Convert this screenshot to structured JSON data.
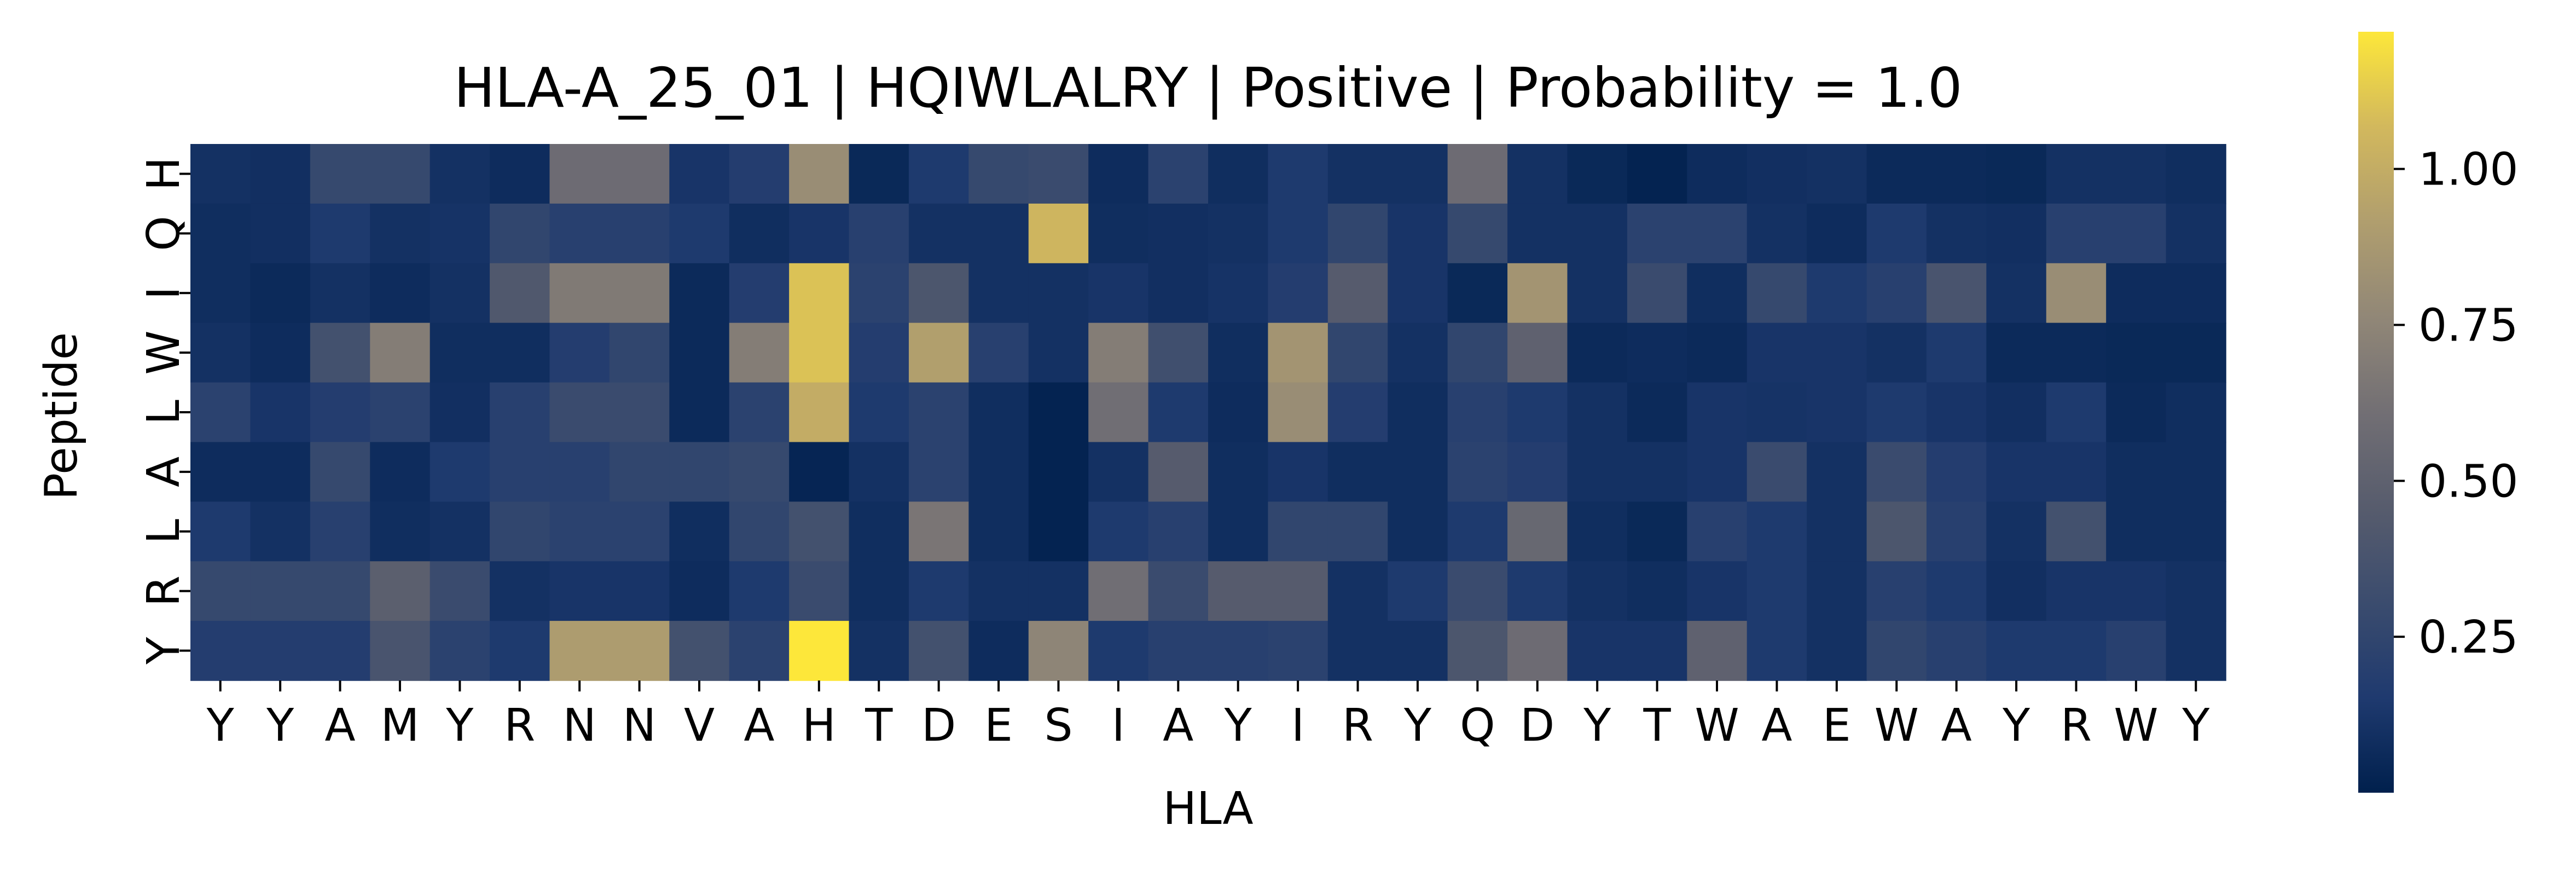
{
  "chart_data": {
    "type": "heatmap",
    "title": "HLA-A_25_01 | HQIWLALRY | Positive | Probability = 1.0",
    "xlabel": "HLA",
    "ylabel": "Peptide",
    "x_categories": [
      "Y",
      "Y",
      "A",
      "M",
      "Y",
      "R",
      "N",
      "N",
      "V",
      "A",
      "H",
      "T",
      "D",
      "E",
      "S",
      "I",
      "A",
      "Y",
      "I",
      "R",
      "Y",
      "Q",
      "D",
      "Y",
      "T",
      "W",
      "A",
      "E",
      "W",
      "A",
      "Y",
      "R",
      "W",
      "Y"
    ],
    "y_categories": [
      "H",
      "Q",
      "I",
      "W",
      "L",
      "A",
      "L",
      "R",
      "Y"
    ],
    "colormap": "cividis",
    "vmin": 0.0,
    "vmax": 1.22,
    "colorbar_ticks": [
      {
        "value": 0.25,
        "label": "0.25"
      },
      {
        "value": 0.5,
        "label": "0.50"
      },
      {
        "value": 0.75,
        "label": "0.75"
      },
      {
        "value": 1.0,
        "label": "1.00"
      }
    ],
    "grid": false,
    "values": [
      [
        0.1,
        0.09,
        0.28,
        0.28,
        0.1,
        0.07,
        0.58,
        0.58,
        0.12,
        0.18,
        0.8,
        0.05,
        0.15,
        0.28,
        0.3,
        0.07,
        0.22,
        0.08,
        0.15,
        0.1,
        0.1,
        0.58,
        0.1,
        0.05,
        0.02,
        0.07,
        0.09,
        0.1,
        0.06,
        0.06,
        0.05,
        0.1,
        0.1,
        0.08
      ],
      [
        0.08,
        0.09,
        0.15,
        0.1,
        0.11,
        0.25,
        0.2,
        0.2,
        0.15,
        0.08,
        0.12,
        0.2,
        0.1,
        0.1,
        1.05,
        0.08,
        0.09,
        0.1,
        0.15,
        0.25,
        0.12,
        0.28,
        0.1,
        0.1,
        0.22,
        0.22,
        0.1,
        0.07,
        0.15,
        0.1,
        0.09,
        0.2,
        0.2,
        0.1
      ],
      [
        0.08,
        0.06,
        0.1,
        0.07,
        0.1,
        0.42,
        0.68,
        0.68,
        0.06,
        0.18,
        1.1,
        0.22,
        0.4,
        0.1,
        0.1,
        0.12,
        0.09,
        0.11,
        0.18,
        0.45,
        0.12,
        0.05,
        0.85,
        0.1,
        0.3,
        0.08,
        0.28,
        0.15,
        0.2,
        0.38,
        0.1,
        0.8,
        0.07,
        0.07
      ],
      [
        0.1,
        0.07,
        0.35,
        0.7,
        0.08,
        0.08,
        0.18,
        0.25,
        0.06,
        0.7,
        1.1,
        0.18,
        0.92,
        0.2,
        0.1,
        0.7,
        0.33,
        0.08,
        0.85,
        0.25,
        0.1,
        0.25,
        0.5,
        0.06,
        0.07,
        0.06,
        0.12,
        0.12,
        0.1,
        0.15,
        0.06,
        0.06,
        0.05,
        0.05
      ],
      [
        0.22,
        0.12,
        0.18,
        0.22,
        0.09,
        0.2,
        0.3,
        0.3,
        0.06,
        0.22,
        1.0,
        0.15,
        0.22,
        0.08,
        0.02,
        0.6,
        0.15,
        0.07,
        0.8,
        0.18,
        0.08,
        0.2,
        0.15,
        0.1,
        0.06,
        0.12,
        0.11,
        0.12,
        0.15,
        0.12,
        0.09,
        0.15,
        0.06,
        0.08
      ],
      [
        0.07,
        0.07,
        0.28,
        0.07,
        0.15,
        0.2,
        0.2,
        0.25,
        0.25,
        0.28,
        0.03,
        0.1,
        0.22,
        0.08,
        0.02,
        0.1,
        0.45,
        0.08,
        0.12,
        0.08,
        0.08,
        0.22,
        0.18,
        0.1,
        0.1,
        0.12,
        0.3,
        0.1,
        0.3,
        0.18,
        0.12,
        0.12,
        0.08,
        0.08
      ],
      [
        0.15,
        0.1,
        0.2,
        0.08,
        0.1,
        0.25,
        0.22,
        0.22,
        0.08,
        0.25,
        0.35,
        0.08,
        0.65,
        0.08,
        0.02,
        0.15,
        0.2,
        0.08,
        0.25,
        0.25,
        0.08,
        0.15,
        0.55,
        0.08,
        0.05,
        0.2,
        0.15,
        0.1,
        0.4,
        0.2,
        0.1,
        0.35,
        0.08,
        0.08
      ],
      [
        0.28,
        0.28,
        0.28,
        0.48,
        0.3,
        0.1,
        0.12,
        0.12,
        0.07,
        0.15,
        0.3,
        0.08,
        0.15,
        0.1,
        0.1,
        0.6,
        0.3,
        0.45,
        0.45,
        0.1,
        0.15,
        0.3,
        0.15,
        0.1,
        0.08,
        0.12,
        0.15,
        0.1,
        0.2,
        0.15,
        0.09,
        0.12,
        0.12,
        0.1
      ],
      [
        0.18,
        0.18,
        0.18,
        0.38,
        0.22,
        0.15,
        0.9,
        0.9,
        0.35,
        0.22,
        1.22,
        0.1,
        0.35,
        0.07,
        0.75,
        0.15,
        0.2,
        0.2,
        0.22,
        0.1,
        0.1,
        0.4,
        0.58,
        0.12,
        0.12,
        0.5,
        0.15,
        0.1,
        0.25,
        0.2,
        0.15,
        0.15,
        0.2,
        0.1
      ]
    ]
  }
}
